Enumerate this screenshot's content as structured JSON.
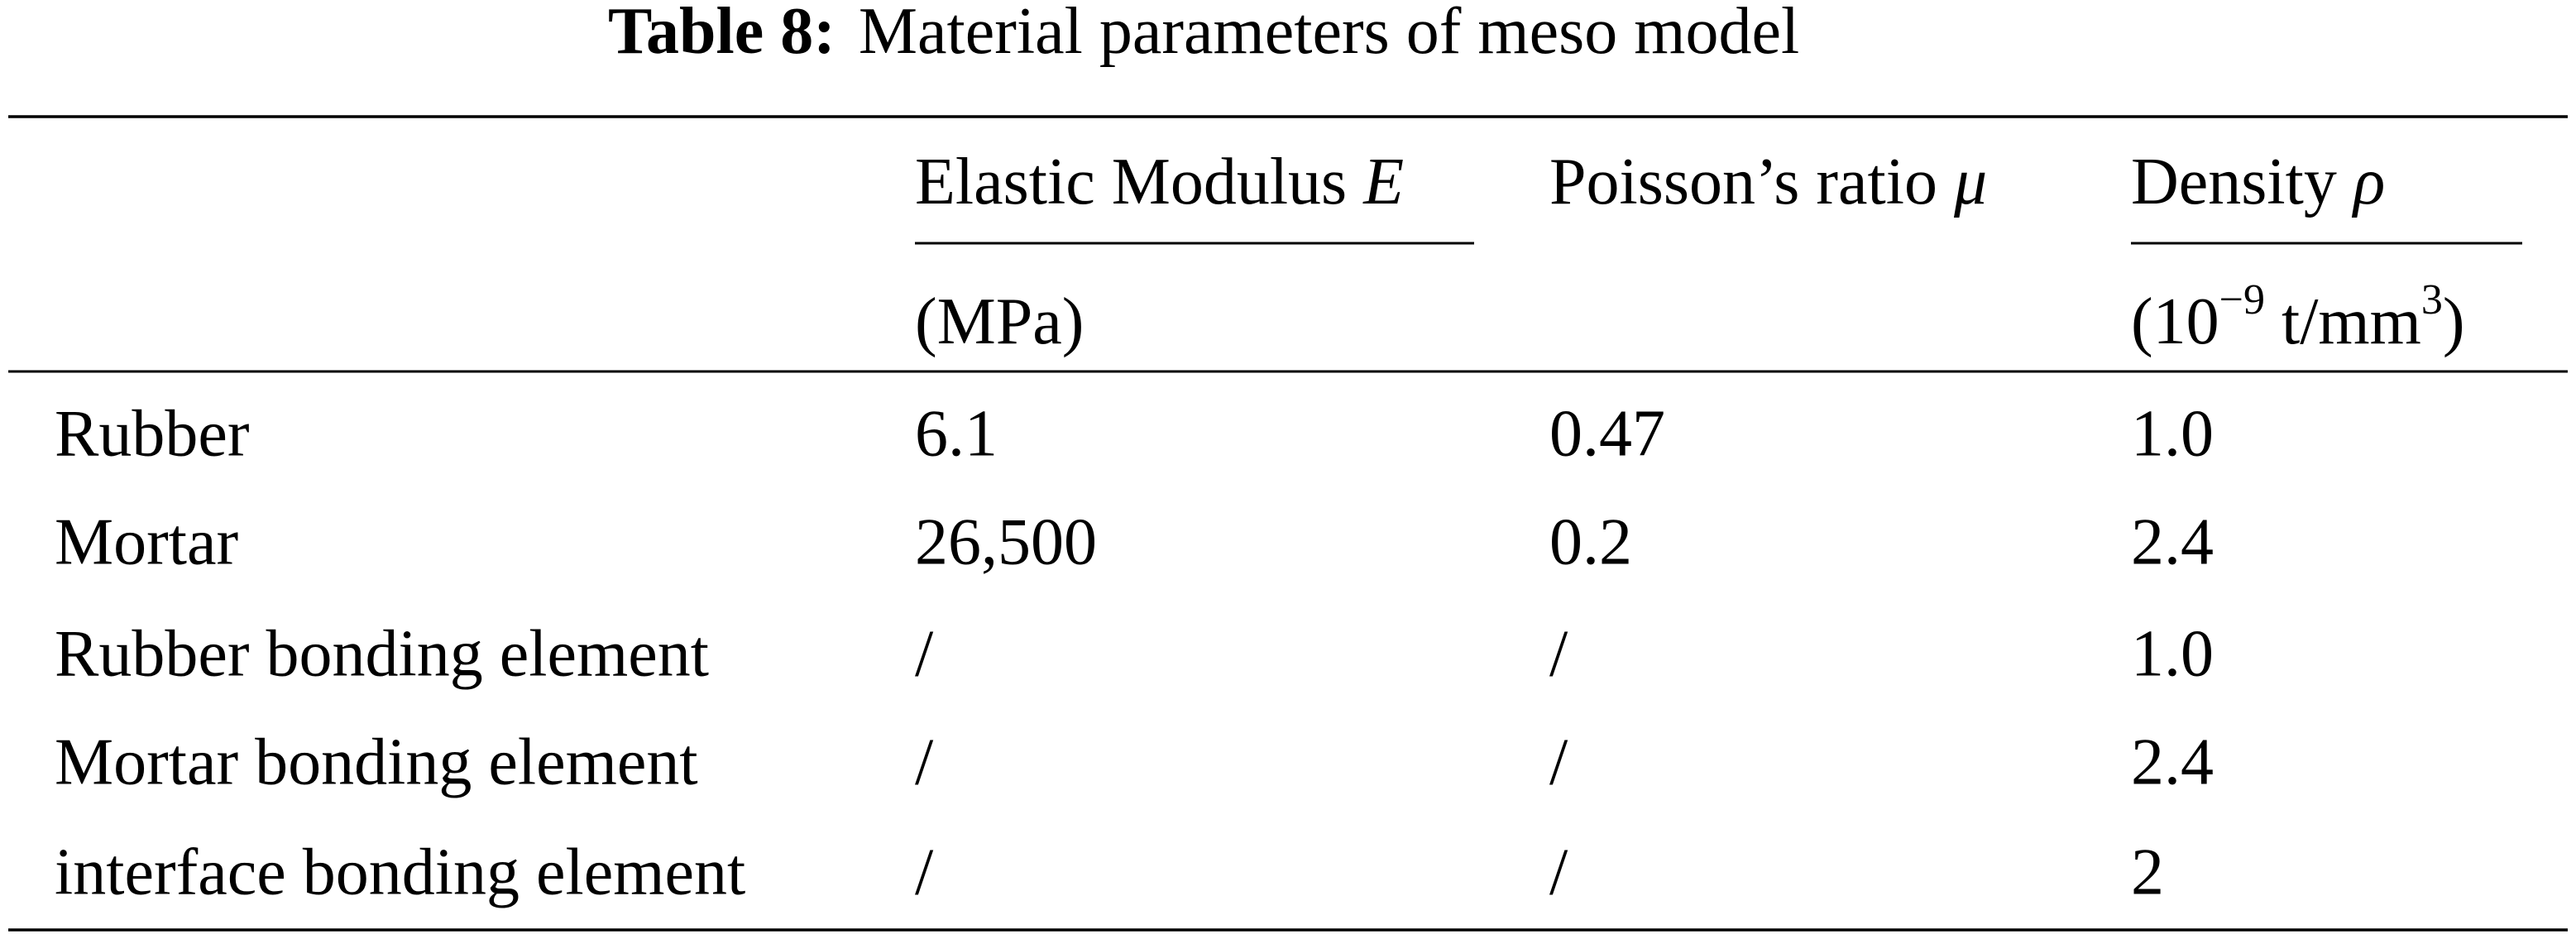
{
  "title": {
    "label": "Table 8:",
    "text": "Material parameters of meso model"
  },
  "table": {
    "columns": [
      {
        "label": "Elastic Modulus",
        "symbol": "E",
        "unit": [
          "(MPa)"
        ]
      },
      {
        "label": "Poisson’s ratio",
        "symbol": "μ",
        "unit": []
      },
      {
        "label": "Density",
        "symbol": "ρ",
        "unit": [
          "(10",
          "−9",
          " t/mm",
          "3",
          ")"
        ]
      }
    ],
    "rows": [
      [
        "Rubber",
        "6.1",
        "0.47",
        "1.0"
      ],
      [
        "Mortar",
        "26,500",
        "0.2",
        "2.4"
      ],
      [
        "Rubber bonding element",
        "/",
        "/",
        "1.0"
      ],
      [
        "Mortar bonding element",
        "/",
        "/",
        "2.4"
      ],
      [
        "interface bonding element",
        "/",
        "/",
        "2"
      ]
    ]
  }
}
